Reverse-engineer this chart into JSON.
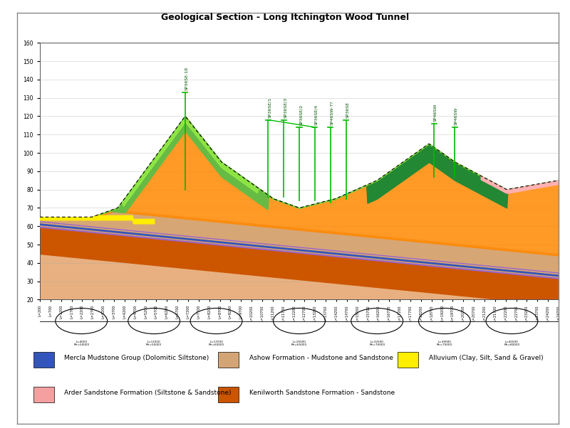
{
  "title": "Geological Section - Long Itchington Wood Tunnel",
  "ylim": [
    20,
    160
  ],
  "xlim": [
    0,
    100
  ],
  "yticks": [
    20,
    30,
    40,
    50,
    60,
    70,
    80,
    90,
    100,
    110,
    120,
    130,
    140,
    150,
    160
  ],
  "colors": {
    "kenilworth_sandstone": "#CC5500",
    "ashow_formation": "#D4A574",
    "arder_sandstone": "#F4A0A0",
    "mercla_mudstone_blue": "#3355BB",
    "mercla_mudstone_purple": "#9966AA",
    "alluvium_yellow": "#FFEE00",
    "green_vegetation": "#228833",
    "light_green": "#88DD44",
    "orange_fill": "#FF8800",
    "light_orange": "#FFBB77",
    "dark_orange": "#CC4400",
    "pink": "#FFB0B0"
  },
  "legend_items": [
    {
      "label": "Mercla Mudstone Group (Dolomitic Siltstone)",
      "color": "#3355BB"
    },
    {
      "label": "Arder Sandstone Formation (Siltstone & Sandstone)",
      "color": "#F4A0A0"
    },
    {
      "label": "Ashow Formation - Mudstone and Sandstone",
      "color": "#D4A574"
    },
    {
      "label": "Kenilworth Sandstone Formation - Sandstone",
      "color": "#CC5500"
    },
    {
      "label": "Alluvium (Clay, Silt, Sand & Gravel)",
      "color": "#FFEE00"
    }
  ],
  "boreholes": [
    {
      "name": "SP36SE-18",
      "x": 28,
      "y_base": 80,
      "y_top": 135
    },
    {
      "name": "SP36SE/1",
      "x": 44,
      "y_base": 80,
      "y_top": 120
    },
    {
      "name": "SP36SE/3",
      "x": 47,
      "y_base": 80,
      "y_top": 120
    },
    {
      "name": "SP36SE/2",
      "x": 50,
      "y_base": 80,
      "y_top": 115
    },
    {
      "name": "SP36SE/4",
      "x": 53,
      "y_base": 80,
      "y_top": 115
    },
    {
      "name": "SP46SW-7?",
      "x": 55,
      "y_base": 78,
      "y_top": 115
    },
    {
      "name": "SP36SE",
      "x": 58,
      "y_base": 75,
      "y_top": 120
    },
    {
      "name": "SP46SW",
      "x": 76,
      "y_base": 85,
      "y_top": 120
    },
    {
      "name": "SP46SW",
      "x": 80,
      "y_base": 85,
      "y_top": 118
    }
  ],
  "background_color": "#FFFFFF"
}
